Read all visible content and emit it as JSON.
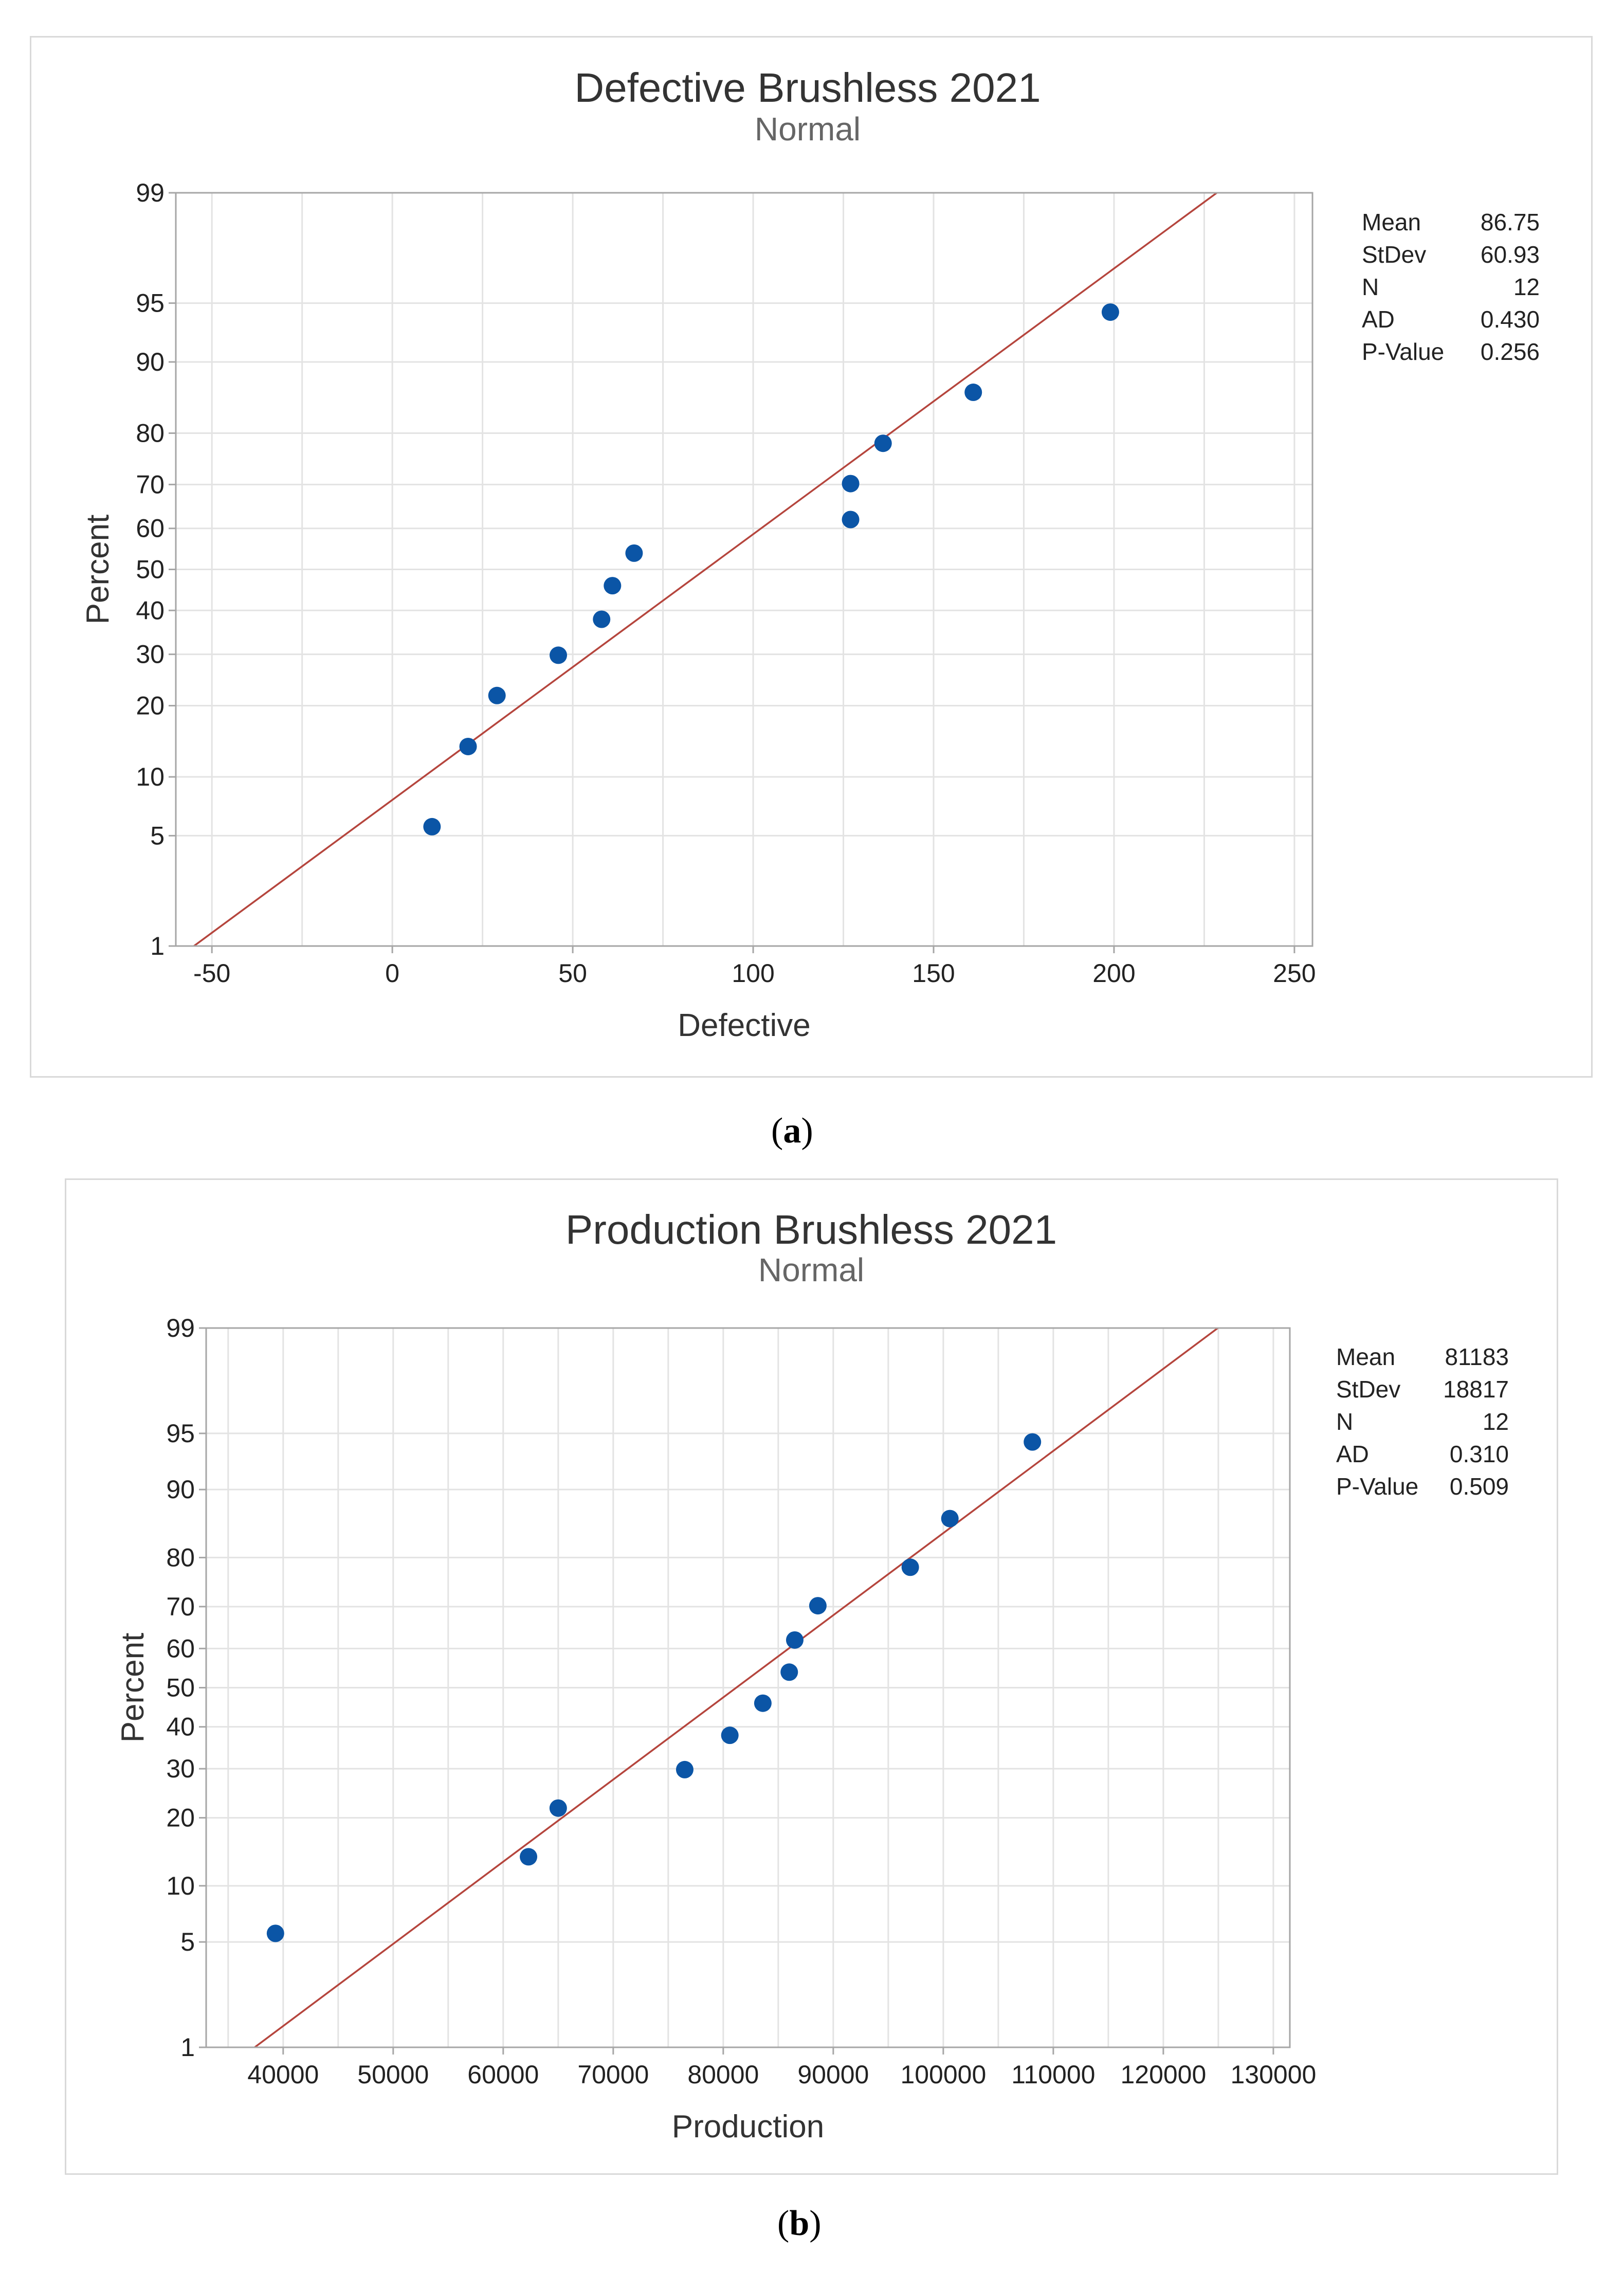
{
  "chart_data": [
    {
      "type": "scatter",
      "title": "Defective Brushless 2021",
      "subtitle": "Normal",
      "xlabel": "Defective",
      "ylabel": "Percent",
      "xlim": [
        -60,
        255
      ],
      "x_ticks": [
        -50,
        0,
        50,
        100,
        150,
        200,
        250
      ],
      "x_tick_labels": [
        "-50",
        "0",
        "50",
        "100",
        "150",
        "200",
        "250"
      ],
      "y_ticks": [
        1,
        5,
        10,
        20,
        30,
        40,
        50,
        60,
        70,
        80,
        90,
        95,
        99
      ],
      "y_tick_labels": [
        "1",
        "5",
        "10",
        "20",
        "30",
        "40",
        "50",
        "60",
        "70",
        "80",
        "90",
        "95",
        "99"
      ],
      "ylim_percent": [
        1,
        99
      ],
      "x_grid": [
        -50,
        -25,
        0,
        25,
        50,
        75,
        100,
        125,
        150,
        175,
        200,
        225,
        250
      ],
      "points": {
        "x": [
          11,
          21,
          29,
          46,
          58,
          61,
          67,
          127,
          127,
          136,
          161,
          199
        ],
        "percent": [
          5.6,
          13.7,
          21.8,
          29.8,
          37.9,
          46.0,
          54.0,
          62.1,
          70.2,
          78.2,
          86.3,
          94.4
        ]
      },
      "fit": {
        "mean": 86.75,
        "stdev": 60.93
      },
      "stats": [
        {
          "label": "Mean",
          "value": "86.75"
        },
        {
          "label": "StDev",
          "value": "60.93"
        },
        {
          "label": "N",
          "value": "12"
        },
        {
          "label": "AD",
          "value": "0.430"
        },
        {
          "label": "P-Value",
          "value": "0.256"
        }
      ],
      "colors": {
        "points": "#0b55a6",
        "fit": "#b5453d",
        "grid": "#e3e3e3",
        "frame": "#a6a6a6"
      }
    },
    {
      "type": "scatter",
      "title": "Production Brushless 2021",
      "subtitle": "Normal",
      "xlabel": "Production",
      "ylabel": "Percent",
      "xlim": [
        33000,
        131500
      ],
      "x_ticks": [
        40000,
        50000,
        60000,
        70000,
        80000,
        90000,
        100000,
        110000,
        120000,
        130000
      ],
      "x_tick_labels": [
        "40000",
        "50000",
        "60000",
        "70000",
        "80000",
        "90000",
        "100000",
        "110000",
        "120000",
        "130000"
      ],
      "y_ticks": [
        1,
        5,
        10,
        20,
        30,
        40,
        50,
        60,
        70,
        80,
        90,
        95,
        99
      ],
      "y_tick_labels": [
        "1",
        "5",
        "10",
        "20",
        "30",
        "40",
        "50",
        "60",
        "70",
        "80",
        "90",
        "95",
        "99"
      ],
      "ylim_percent": [
        1,
        99
      ],
      "x_grid": [
        35000,
        40000,
        45000,
        50000,
        55000,
        60000,
        65000,
        70000,
        75000,
        80000,
        85000,
        90000,
        95000,
        100000,
        105000,
        110000,
        115000,
        120000,
        125000,
        130000
      ],
      "points": {
        "x": [
          39300,
          62300,
          65000,
          76500,
          80600,
          83600,
          86000,
          86500,
          88600,
          97000,
          100600,
          108100
        ],
        "percent": [
          5.6,
          13.7,
          21.8,
          29.8,
          37.9,
          46.0,
          54.0,
          62.1,
          70.2,
          78.2,
          86.3,
          94.4
        ]
      },
      "fit": {
        "mean": 81183,
        "stdev": 18817
      },
      "stats": [
        {
          "label": "Mean",
          "value": "81183"
        },
        {
          "label": "StDev",
          "value": "18817"
        },
        {
          "label": "N",
          "value": "12"
        },
        {
          "label": "AD",
          "value": "0.310"
        },
        {
          "label": "P-Value",
          "value": "0.509"
        }
      ],
      "colors": {
        "points": "#0b55a6",
        "fit": "#b5453d",
        "grid": "#e3e3e3",
        "frame": "#a6a6a6"
      }
    }
  ],
  "captions": {
    "a": "a",
    "b": "b"
  }
}
